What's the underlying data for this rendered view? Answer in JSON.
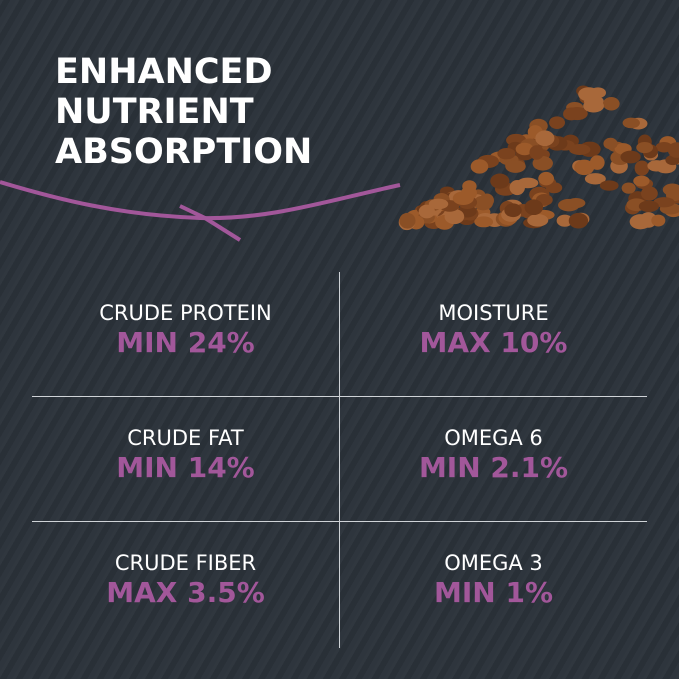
{
  "headline": [
    "ENHANCED",
    "NUTRIENT",
    "ABSORPTION"
  ],
  "colors": {
    "background": "#2b323a",
    "accent": "#a2579a",
    "text": "#ffffff"
  },
  "nutrients": [
    {
      "label": "CRUDE PROTEIN",
      "value": "MIN 24%"
    },
    {
      "label": "MOISTURE",
      "value": "MAX 10%"
    },
    {
      "label": "CRUDE FAT",
      "value": "MIN 14%"
    },
    {
      "label": "OMEGA 6",
      "value": "MIN 2.1%"
    },
    {
      "label": "CRUDE FIBER",
      "value": "MAX 3.5%"
    },
    {
      "label": "OMEGA 3",
      "value": "MIN 1%"
    }
  ]
}
